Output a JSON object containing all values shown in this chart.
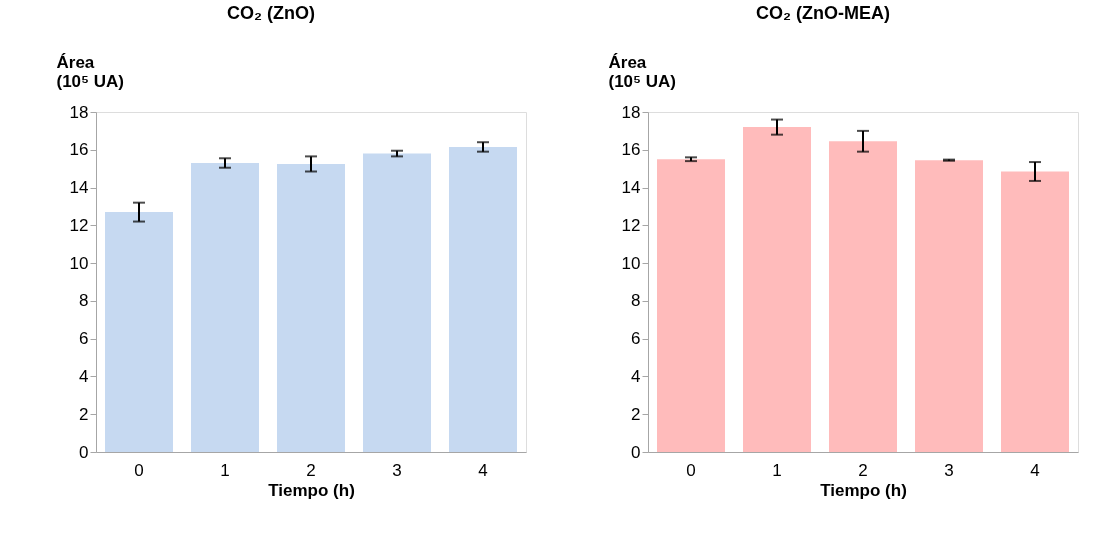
{
  "chart_data": [
    {
      "type": "bar",
      "title": "CO₂ (ZnO)",
      "ylabel": "Área (10⁵ UA)",
      "xlabel": "Tiempo (h)",
      "categories": [
        "0",
        "1",
        "2",
        "3",
        "4"
      ],
      "series": [
        {
          "color": "#c6d9f1",
          "values": [
            12.7,
            15.3,
            15.25,
            15.8,
            16.15
          ],
          "errors": [
            0.5,
            0.25,
            0.4,
            0.15,
            0.25
          ]
        }
      ],
      "ylim": [
        0,
        18
      ],
      "yticks": [
        0,
        2,
        4,
        6,
        8,
        10,
        12,
        14,
        16,
        18
      ],
      "grid": false
    },
    {
      "type": "bar",
      "title": "CO₂ (ZnO-MEA)",
      "ylabel": "Área (10⁵ UA)",
      "xlabel": "Tiempo (h)",
      "categories": [
        "0",
        "1",
        "2",
        "3",
        "4"
      ],
      "series": [
        {
          "color": "#ffbbbb",
          "values": [
            15.5,
            17.2,
            16.45,
            15.45,
            14.85
          ],
          "errors": [
            0.1,
            0.4,
            0.55,
            0.03,
            0.5
          ]
        }
      ],
      "ylim": [
        0,
        18
      ],
      "yticks": [
        0,
        2,
        4,
        6,
        8,
        10,
        12,
        14,
        16,
        18
      ],
      "grid": false
    }
  ]
}
